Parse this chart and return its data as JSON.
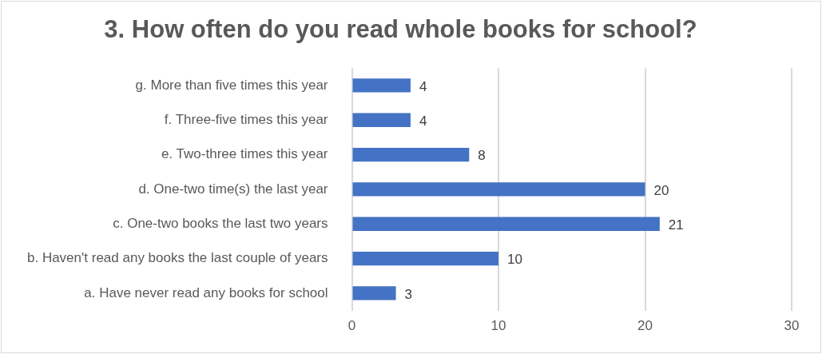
{
  "chart_data": {
    "type": "bar",
    "orientation": "horizontal",
    "title": "3. How often do you read whole books for school?",
    "categories": [
      "g. More than five times this year",
      "f. Three-five times this year",
      "e. Two-three times this year",
      "d. One-two time(s) the last year",
      "c. One-two books the last two years",
      "b. Haven't read any books the last couple of years",
      "a. Have never read any books for school"
    ],
    "values": [
      4,
      4,
      8,
      20,
      21,
      10,
      3
    ],
    "color": "#4472c4",
    "xlim": [
      0,
      30
    ],
    "xticks": [
      0,
      10,
      20,
      30
    ],
    "grid": "x",
    "data_labels": true,
    "legend": false
  }
}
